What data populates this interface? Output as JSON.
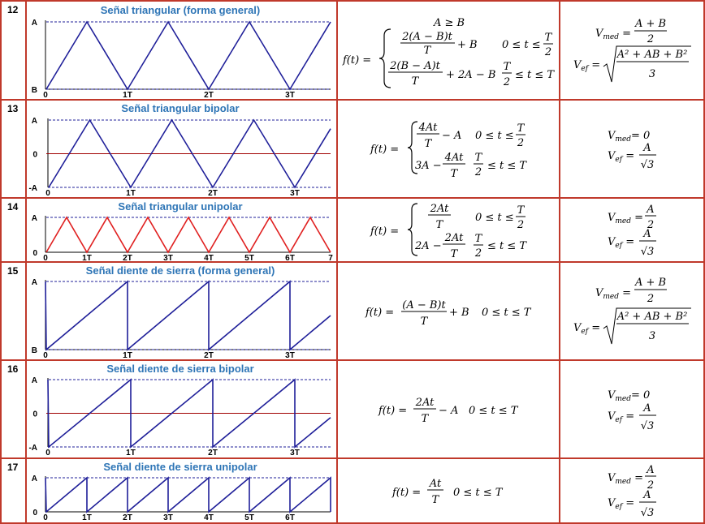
{
  "colors": {
    "grid": "#c0392b",
    "title": "#2e75b6",
    "wave_blue": "#1f1f99",
    "wave_red": "#e02020",
    "dashed": "#1f1f99",
    "zero_line": "#a00000",
    "text": "#000000"
  },
  "rows": [
    {
      "num": "12",
      "title": "Señal triangular (forma general)",
      "chart_data": {
        "type": "line",
        "wave": "triangle",
        "color": "blue",
        "y_labels": [
          "A",
          "B"
        ],
        "x_labels": [
          "0",
          "1T",
          "2T",
          "3T"
        ],
        "cycles": 3.5
      },
      "formula": {
        "lhs": "f(t) =",
        "cond_top": "A ≥ B",
        "case1_num": "2(A − B)t",
        "case1_den": "T",
        "case1_tail": "+ B",
        "case1_range": "0 ≤ t ≤",
        "case1_rnum": "T",
        "case1_rden": "2",
        "case2_num": "2(B − A)t",
        "case2_den": "T",
        "case2_tail": "+ 2A − B",
        "case2_rnum": "T",
        "case2_rden": "2",
        "case2_range": "≤ t ≤ T"
      },
      "values": {
        "vmed_lhs": "V",
        "vmed_sub": "med",
        "vmed_num": "A + B",
        "vmed_den": "2",
        "vef_lhs": "V",
        "vef_sub": "ef",
        "vef_rad": "A² + AB + B²",
        "vef_den": "3"
      }
    },
    {
      "num": "13",
      "title": "Señal triangular bipolar",
      "chart_data": {
        "type": "line",
        "wave": "triangle-bipolar",
        "color": "blue",
        "y_labels": [
          "A",
          "0",
          "-A"
        ],
        "x_labels": [
          "0",
          "1T",
          "2T",
          "3T"
        ]
      },
      "formula": {
        "lhs": "f(t) =",
        "case1_num": "4At",
        "case1_den": "T",
        "case1_tail": "− A",
        "case1_range": "0 ≤ t ≤",
        "case1_rnum": "T",
        "case1_rden": "2",
        "case2_pre": "3A −",
        "case2_num": "4At",
        "case2_den": "T",
        "case2_rnum": "T",
        "case2_rden": "2",
        "case2_range": "≤ t ≤ T"
      },
      "values": {
        "vmed_lhs": "V",
        "vmed_sub": "med",
        "vmed_eq": "= 0",
        "vef_lhs": "V",
        "vef_sub": "ef",
        "vef_num": "A",
        "vef_den": "√3"
      }
    },
    {
      "num": "14",
      "title": "Señal triangular unipolar",
      "chart_data": {
        "type": "line",
        "wave": "triangle-unipolar",
        "color": "red",
        "y_labels": [
          "A",
          "0"
        ],
        "x_labels": [
          "0",
          "1T",
          "2T",
          "3T",
          "4T",
          "5T",
          "6T",
          "7"
        ]
      },
      "formula": {
        "lhs": "f(t) =",
        "case1_num": "2At",
        "case1_den": "T",
        "case1_range": "0 ≤ t ≤",
        "case1_rnum": "T",
        "case1_rden": "2",
        "case2_pre": "2A −",
        "case2_num": "2At",
        "case2_den": "T",
        "case2_rnum": "T",
        "case2_rden": "2",
        "case2_range": "≤ t ≤ T"
      },
      "values": {
        "vmed_lhs": "V",
        "vmed_sub": "med",
        "vmed_num": "A",
        "vmed_den": "2",
        "vef_lhs": "V",
        "vef_sub": "ef",
        "vef_num": "A",
        "vef_den": "√3"
      }
    },
    {
      "num": "15",
      "title": "Señal diente de sierra (forma general)",
      "chart_data": {
        "type": "line",
        "wave": "sawtooth",
        "color": "blue",
        "y_labels": [
          "A",
          "B"
        ],
        "x_labels": [
          "0",
          "1T",
          "2T",
          "3T"
        ]
      },
      "formula": {
        "lhs": "f(t) =",
        "num": "(A − B)t",
        "den": "T",
        "tail": "+ B",
        "range": "0 ≤ t ≤ T"
      },
      "values": {
        "vmed_lhs": "V",
        "vmed_sub": "med",
        "vmed_num": "A + B",
        "vmed_den": "2",
        "vef_lhs": "V",
        "vef_sub": "ef",
        "vef_rad": "A² + AB + B²",
        "vef_den": "3"
      }
    },
    {
      "num": "16",
      "title": "Señal diente de sierra bipolar",
      "chart_data": {
        "type": "line",
        "wave": "sawtooth-bipolar",
        "color": "blue",
        "y_labels": [
          "A",
          "0",
          "-A"
        ],
        "x_labels": [
          "0",
          "1T",
          "2T",
          "3T"
        ]
      },
      "formula": {
        "lhs": "f(t) =",
        "num": "2At",
        "den": "T",
        "tail": "− A",
        "range": "0 ≤ t ≤ T"
      },
      "values": {
        "vmed_lhs": "V",
        "vmed_sub": "med",
        "vmed_eq": "= 0",
        "vef_lhs": "V",
        "vef_sub": "ef",
        "vef_num": "A",
        "vef_den": "√3"
      }
    },
    {
      "num": "17",
      "title": "Señal diente de sierra unipolar",
      "chart_data": {
        "type": "line",
        "wave": "sawtooth-unipolar",
        "color": "blue",
        "y_labels": [
          "A",
          "0"
        ],
        "x_labels": [
          "0",
          "1T",
          "2T",
          "3T",
          "4T",
          "5T",
          "6T"
        ]
      },
      "formula": {
        "lhs": "f(t) =",
        "num": "At",
        "den": "T",
        "range": "0 ≤ t ≤ T"
      },
      "values": {
        "vmed_lhs": "V",
        "vmed_sub": "med",
        "vmed_num": "A",
        "vmed_den": "2",
        "vef_lhs": "V",
        "vef_sub": "ef",
        "vef_num": "A",
        "vef_den": "√3"
      }
    }
  ]
}
